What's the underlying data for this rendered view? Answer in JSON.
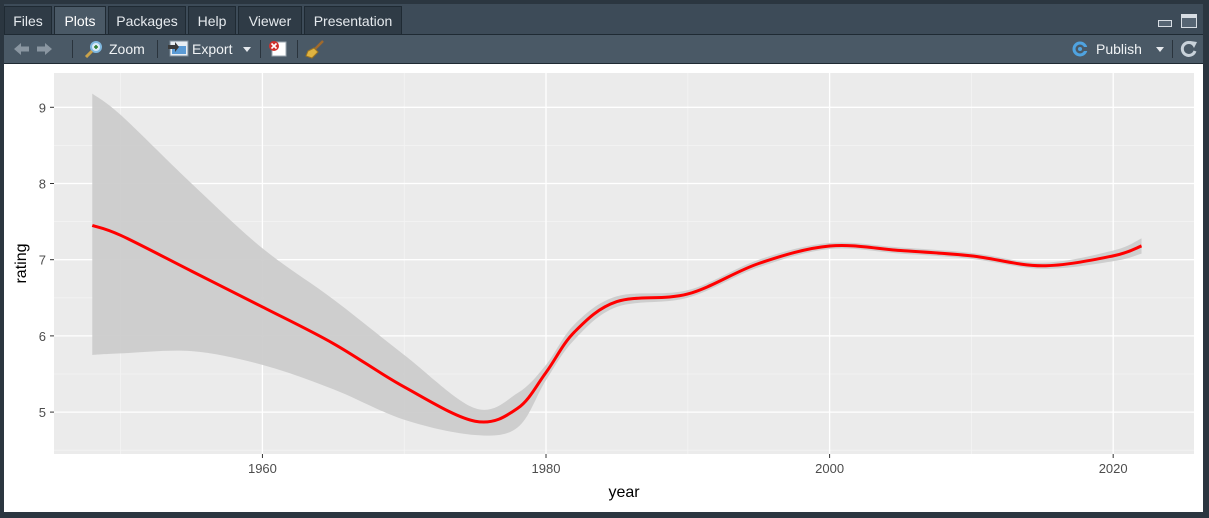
{
  "tabs": [
    {
      "label": "Files",
      "active": false
    },
    {
      "label": "Plots",
      "active": true
    },
    {
      "label": "Packages",
      "active": false
    },
    {
      "label": "Help",
      "active": false
    },
    {
      "label": "Viewer",
      "active": false
    },
    {
      "label": "Presentation",
      "active": false
    }
  ],
  "toolbar": {
    "back_icon": "arrow-left-icon",
    "forward_icon": "arrow-right-icon",
    "zoom_label": "Zoom",
    "export_label": "Export",
    "remove_icon": "remove-plot-icon",
    "clear_icon": "broom-icon",
    "publish_label": "Publish",
    "refresh_icon": "refresh-icon",
    "publish_color": "#4fa3e0"
  },
  "chart_data": {
    "type": "line",
    "title": "",
    "xlabel": "year",
    "ylabel": "rating",
    "xlim": [
      1945.3,
      2025.7
    ],
    "ylim": [
      4.45,
      9.45
    ],
    "x_ticks": [
      1960,
      1980,
      2000,
      2020
    ],
    "y_ticks": [
      5,
      6,
      7,
      8,
      9
    ],
    "grid": true,
    "legend": "none",
    "line_color": "#ff0000",
    "band_color": "#cccccc",
    "panel_background": "#ebebeb",
    "series": [
      {
        "x": [
          1948,
          1950,
          1955,
          1960,
          1965,
          1970,
          1975,
          1978,
          1980,
          1982,
          1985,
          1990,
          1995,
          2000,
          2005,
          2010,
          2015,
          2020,
          2022
        ],
        "values": [
          7.45,
          7.32,
          6.85,
          6.38,
          5.9,
          5.33,
          4.88,
          5.05,
          5.52,
          6.05,
          6.45,
          6.55,
          6.95,
          7.18,
          7.12,
          7.05,
          6.92,
          7.05,
          7.18
        ],
        "lower": [
          5.75,
          5.77,
          5.8,
          5.62,
          5.3,
          4.9,
          4.7,
          4.8,
          5.42,
          5.95,
          6.38,
          6.5,
          6.9,
          7.14,
          7.08,
          7.01,
          6.88,
          6.98,
          7.08
        ],
        "upper": [
          9.18,
          8.9,
          8.0,
          7.15,
          6.48,
          5.75,
          5.05,
          5.25,
          5.62,
          6.15,
          6.52,
          6.6,
          7.0,
          7.22,
          7.16,
          7.09,
          6.96,
          7.12,
          7.28
        ]
      }
    ]
  }
}
